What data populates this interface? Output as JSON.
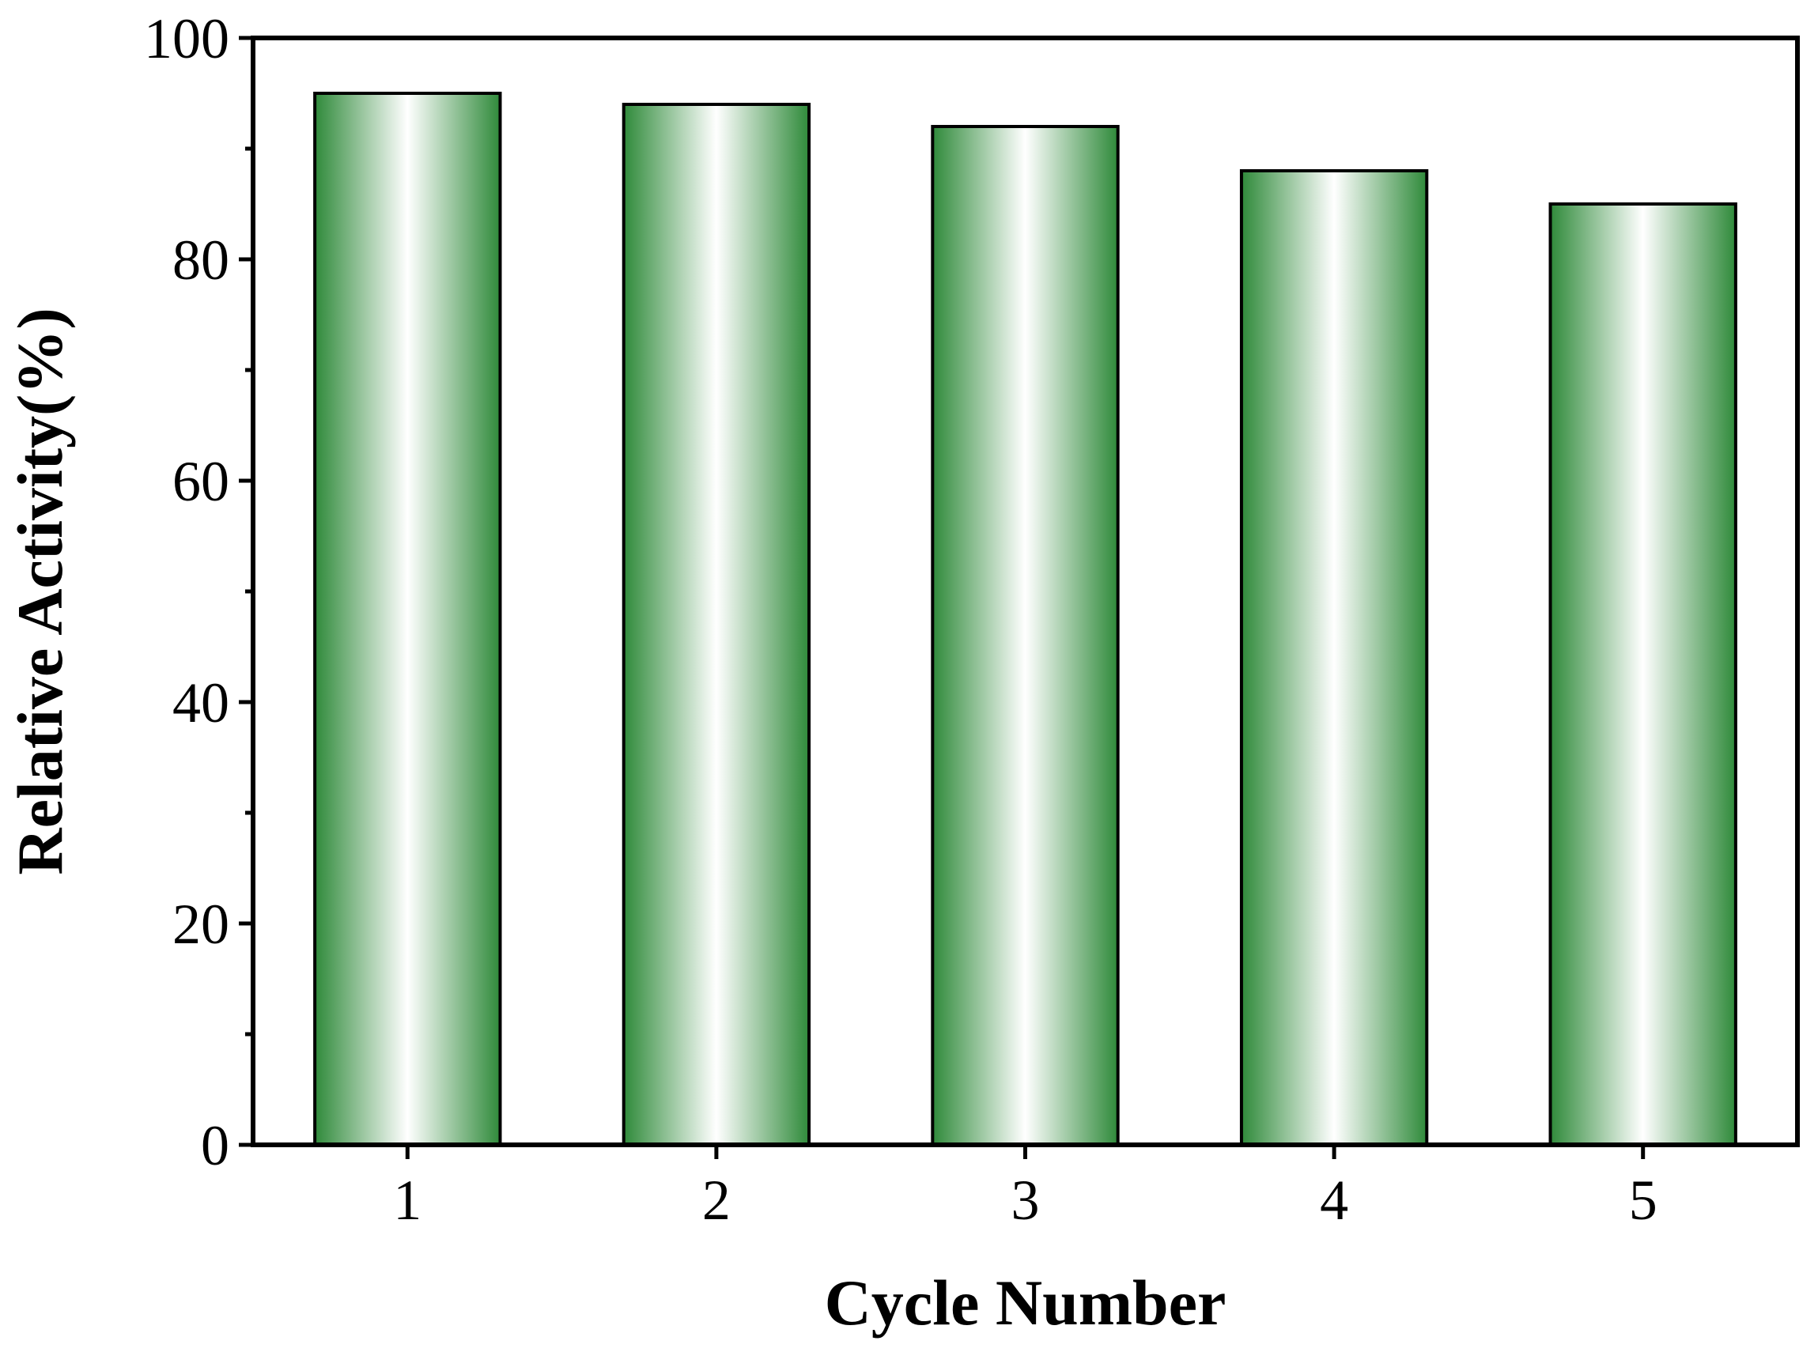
{
  "chart_data": {
    "type": "bar",
    "title": "",
    "xlabel": "Cycle Number",
    "ylabel": "Relative Activity(%)",
    "categories": [
      "1",
      "2",
      "3",
      "4",
      "5"
    ],
    "values": [
      95,
      94,
      92,
      88,
      85
    ],
    "ylim": [
      0,
      100
    ],
    "yticks": [
      0,
      20,
      40,
      60,
      80,
      100
    ],
    "y_minor_step": 10,
    "grid": false,
    "legend": "none",
    "bar_fill": "green-white-green horizontal gradient",
    "colors": {
      "bar_edge": "#2f8a3a",
      "bar_center": "#ffffff",
      "bar_outline": "#000000"
    }
  }
}
